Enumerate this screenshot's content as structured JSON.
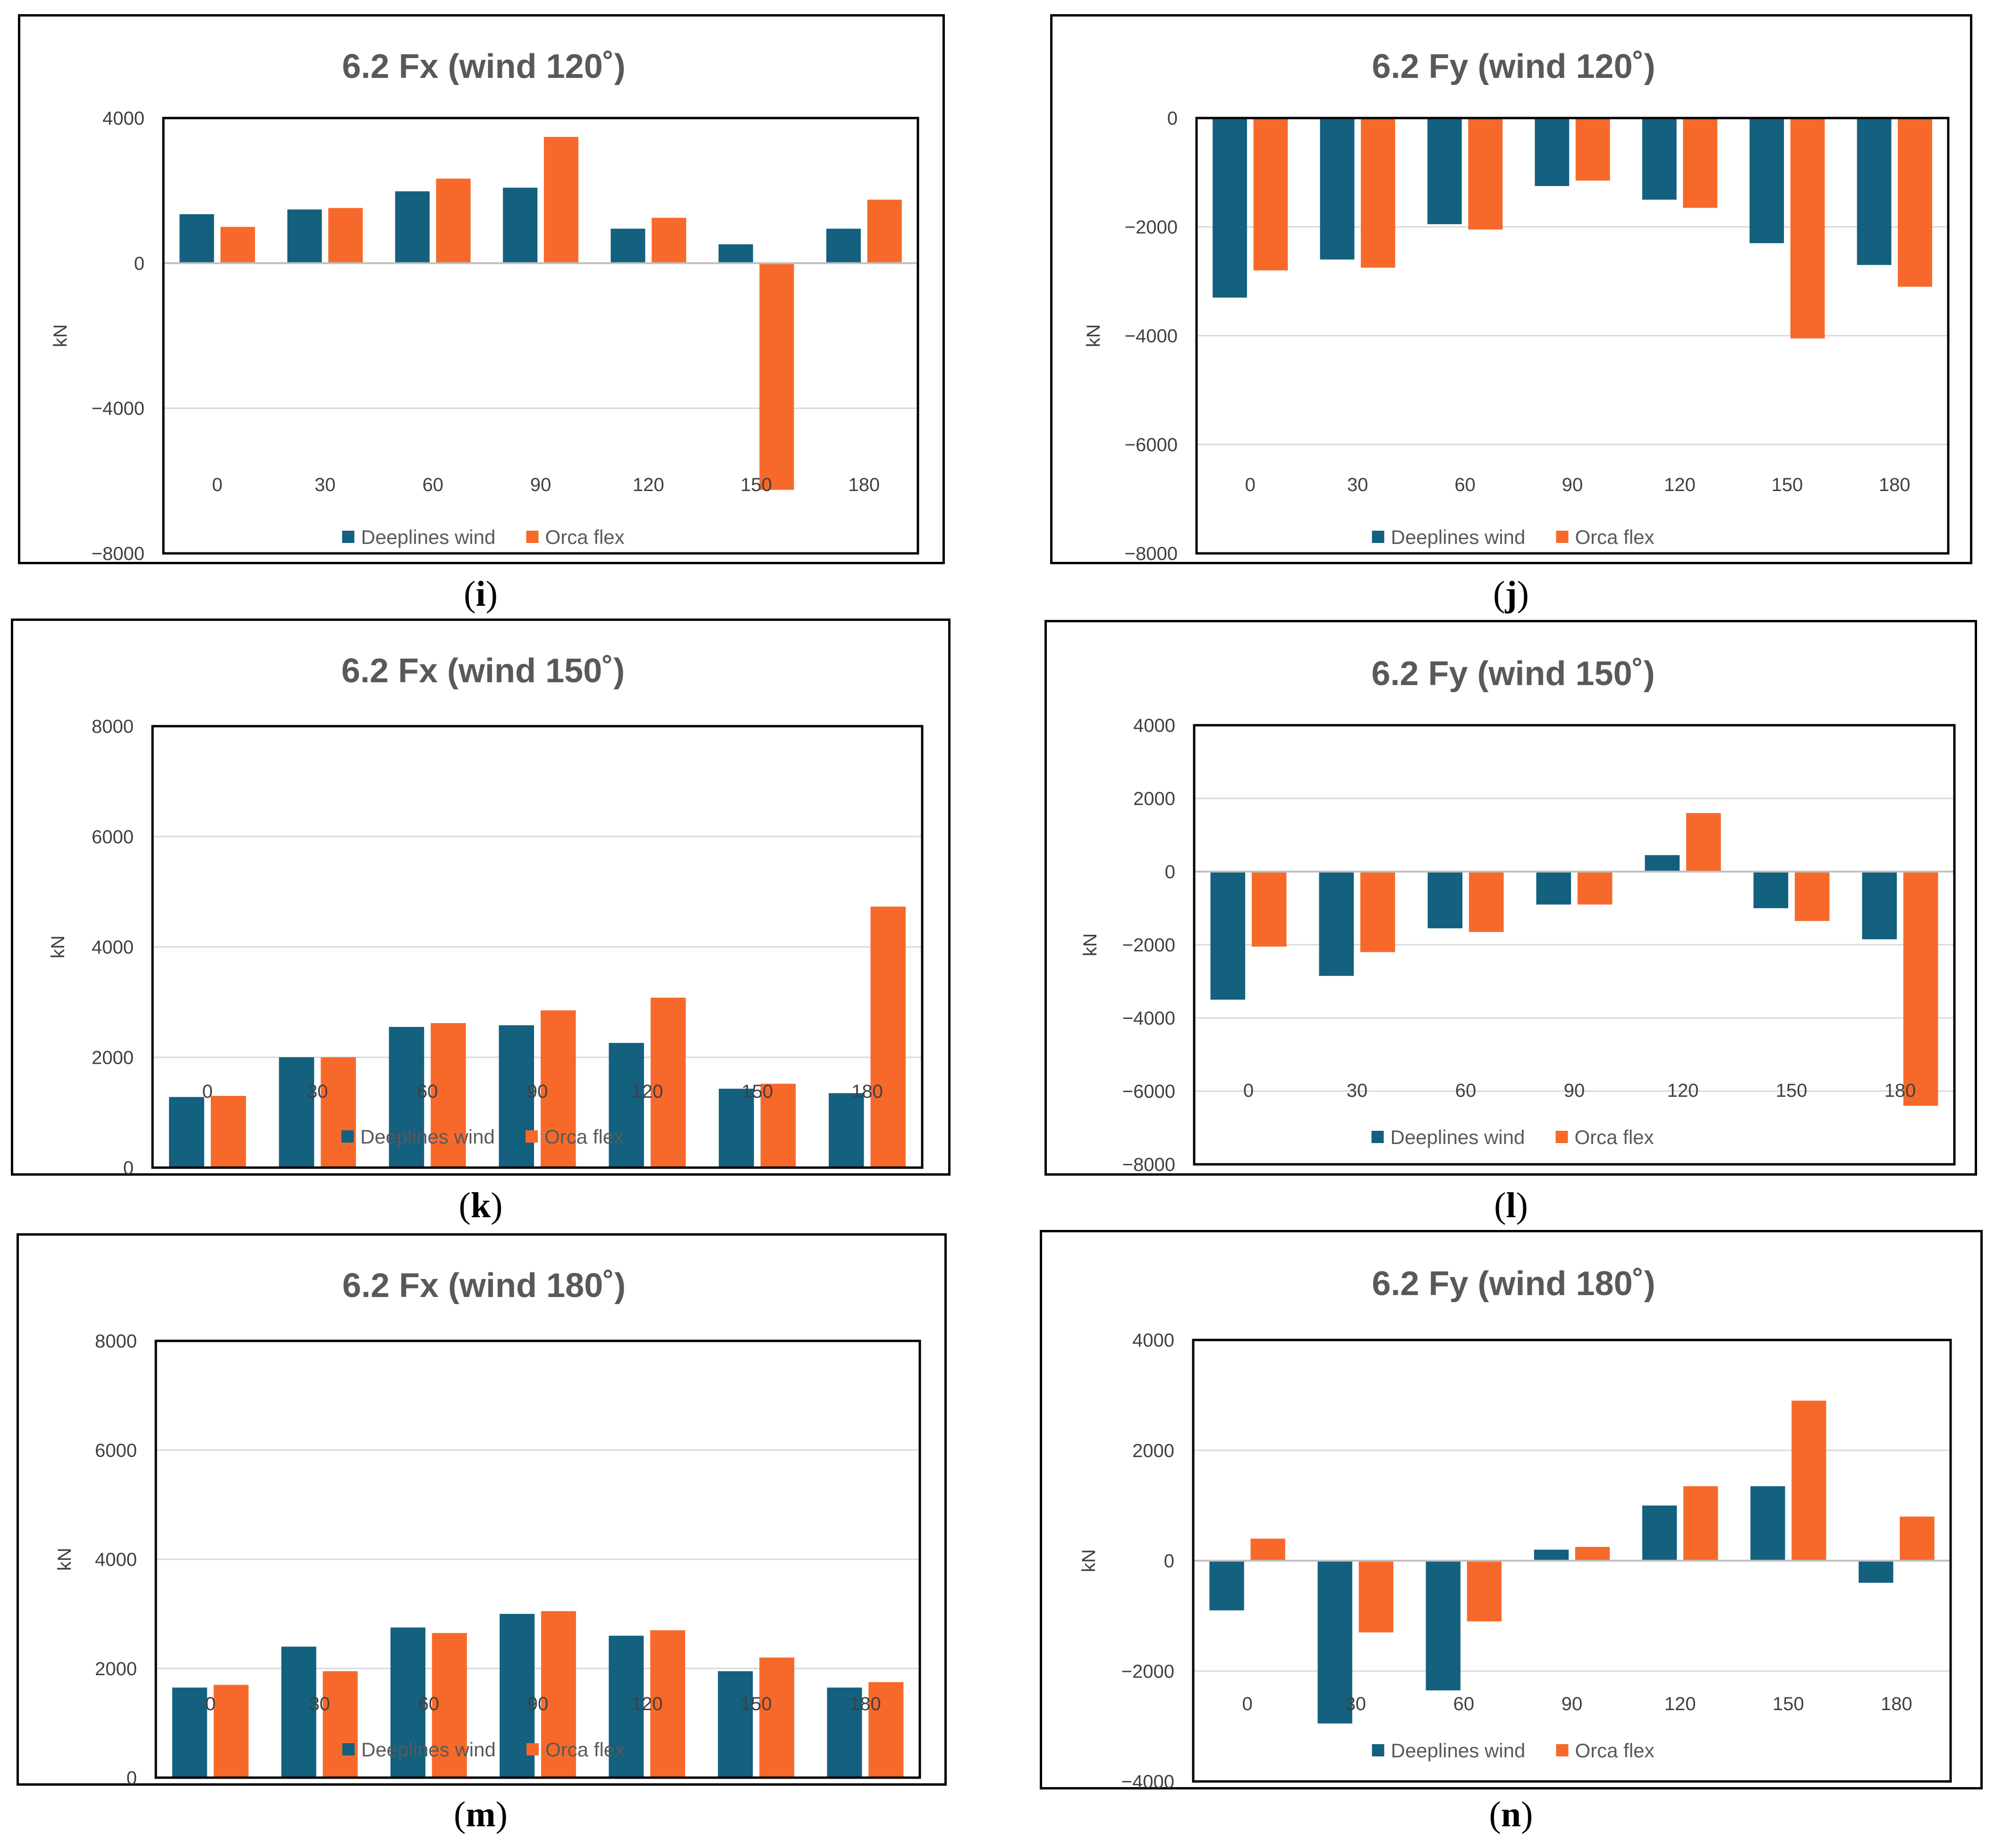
{
  "legend": {
    "series1": "Deeplines wind",
    "series2": "Orca flex"
  },
  "colors": {
    "series1": "#13607f",
    "series2": "#f7692a",
    "grid": "#d9d9d9",
    "text": "#595959"
  },
  "chart_data": [
    {
      "id": "i",
      "caption": "i",
      "type": "bar",
      "title": "6.2 Fx (wind 120˚)",
      "ylabel": "kN",
      "categories": [
        "0",
        "30",
        "60",
        "90",
        "120",
        "150",
        "180"
      ],
      "ylim": [
        -8000,
        4000
      ],
      "yticks": [
        4000,
        0,
        -4000,
        -8000
      ],
      "series": [
        {
          "name": "Deeplines wind",
          "values": [
            1350,
            1480,
            1980,
            2080,
            950,
            520,
            950
          ]
        },
        {
          "name": "Orca flex",
          "values": [
            1000,
            1520,
            2330,
            3480,
            1250,
            -6250,
            1750
          ]
        }
      ]
    },
    {
      "id": "j",
      "caption": "j",
      "type": "bar",
      "title": "6.2 Fy (wind 120˚)",
      "ylabel": "kN",
      "categories": [
        "0",
        "30",
        "60",
        "90",
        "120",
        "150",
        "180"
      ],
      "ylim": [
        -8000,
        0
      ],
      "yticks": [
        0,
        -2000,
        -4000,
        -6000,
        -8000
      ],
      "series": [
        {
          "name": "Deeplines wind",
          "values": [
            -3300,
            -2600,
            -1950,
            -1250,
            -1500,
            -2300,
            -2700
          ]
        },
        {
          "name": "Orca flex",
          "values": [
            -2800,
            -2750,
            -2050,
            -1150,
            -1650,
            -4050,
            -3100
          ]
        }
      ]
    },
    {
      "id": "k",
      "caption": "k",
      "type": "bar",
      "title": "6.2 Fx (wind 150˚)",
      "ylabel": "kN",
      "categories": [
        "0",
        "30",
        "60",
        "90",
        "120",
        "150",
        "180"
      ],
      "ylim": [
        0,
        8000
      ],
      "yticks": [
        8000,
        6000,
        4000,
        2000,
        0
      ],
      "series": [
        {
          "name": "Deeplines wind",
          "values": [
            1280,
            2000,
            2550,
            2580,
            2260,
            1430,
            1350
          ]
        },
        {
          "name": "Orca flex",
          "values": [
            1300,
            2000,
            2620,
            2850,
            3080,
            1520,
            4730
          ]
        }
      ]
    },
    {
      "id": "l",
      "caption": "l",
      "type": "bar",
      "title": "6.2 Fy (wind 150˚)",
      "ylabel": "kN",
      "categories": [
        "0",
        "30",
        "60",
        "90",
        "120",
        "150",
        "180"
      ],
      "ylim": [
        -8000,
        4000
      ],
      "yticks": [
        4000,
        2000,
        0,
        -2000,
        -4000,
        -6000,
        -8000
      ],
      "series": [
        {
          "name": "Deeplines wind",
          "values": [
            -3500,
            -2850,
            -1550,
            -900,
            450,
            -1000,
            -1850
          ]
        },
        {
          "name": "Orca flex",
          "values": [
            -2050,
            -2200,
            -1650,
            -900,
            1600,
            -1350,
            -6400
          ]
        }
      ]
    },
    {
      "id": "m",
      "caption": "m",
      "type": "bar",
      "title": "6.2 Fx (wind 180˚)",
      "ylabel": "kN",
      "categories": [
        "0",
        "30",
        "60",
        "90",
        "120",
        "150",
        "180"
      ],
      "ylim": [
        0,
        8000
      ],
      "yticks": [
        8000,
        6000,
        4000,
        2000,
        0
      ],
      "series": [
        {
          "name": "Deeplines wind",
          "values": [
            1650,
            2400,
            2750,
            3000,
            2600,
            1950,
            1650
          ]
        },
        {
          "name": "Orca flex",
          "values": [
            1700,
            1950,
            2650,
            3050,
            2700,
            2200,
            1750
          ]
        }
      ]
    },
    {
      "id": "n",
      "caption": "n",
      "type": "bar",
      "title": "6.2 Fy (wind 180˚)",
      "ylabel": "kN",
      "categories": [
        "0",
        "30",
        "60",
        "90",
        "120",
        "150",
        "180"
      ],
      "ylim": [
        -4000,
        4000
      ],
      "yticks": [
        4000,
        2000,
        0,
        -2000,
        -4000
      ],
      "series": [
        {
          "name": "Deeplines wind",
          "values": [
            -900,
            -2950,
            -2350,
            200,
            1000,
            1350,
            -400
          ]
        },
        {
          "name": "Orca flex",
          "values": [
            400,
            -1300,
            -1100,
            250,
            1350,
            2900,
            800
          ]
        }
      ]
    }
  ]
}
